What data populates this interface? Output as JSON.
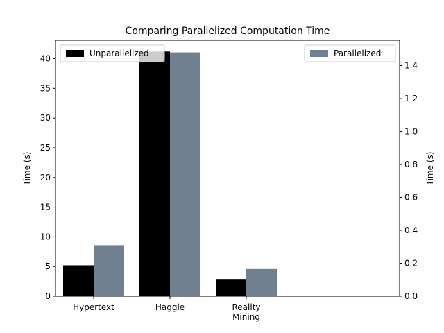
{
  "chart_data": {
    "type": "bar",
    "title": "Comparing Parallelized Computation Time",
    "categories": [
      [
        "Hypertext"
      ],
      [
        "Haggle"
      ],
      [
        "Reality",
        "Mining"
      ]
    ],
    "series": [
      {
        "name": "Unparallelized",
        "axis": "left",
        "color": "#000000",
        "values": [
          5.2,
          41.2,
          2.9
        ]
      },
      {
        "name": "Parallelized",
        "axis": "right",
        "color": "#708090",
        "values": [
          0.31,
          1.48,
          0.165
        ]
      }
    ],
    "left_axis": {
      "ylabel": "Time (s)",
      "ylim": [
        0,
        43.1
      ],
      "ticks": [
        0,
        5,
        10,
        15,
        20,
        25,
        30,
        35,
        40
      ]
    },
    "right_axis": {
      "ylabel": "Time (s)",
      "ylim": [
        0,
        1.554
      ],
      "ticks": [
        "0.0",
        "0.2",
        "0.4",
        "0.6",
        "0.8",
        "1.0",
        "1.2",
        "1.4"
      ]
    },
    "legend_left_placement": "top-left",
    "legend_right_placement": "top-right",
    "grid": false
  }
}
